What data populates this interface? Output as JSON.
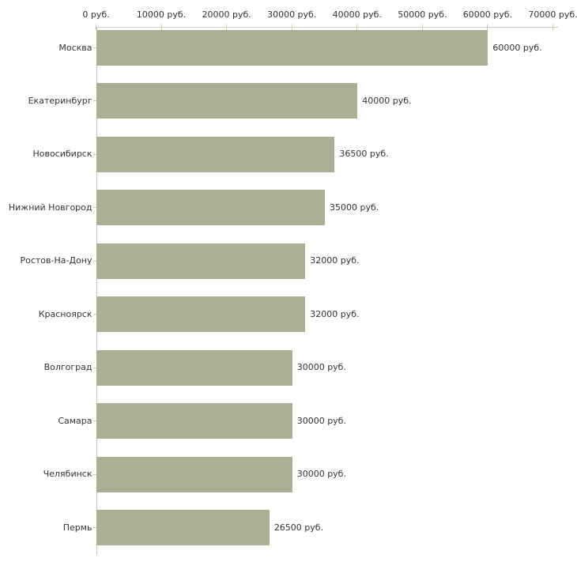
{
  "chart_data": {
    "type": "bar",
    "orientation": "horizontal",
    "title": "",
    "xlabel": "",
    "ylabel": "",
    "categories": [
      "Москва",
      "Екатеринбург",
      "Новосибирск",
      "Нижний Новгород",
      "Ростов-На-Дону",
      "Красноярск",
      "Волгоград",
      "Самара",
      "Челябинск",
      "Пермь"
    ],
    "values": [
      60000,
      40000,
      36500,
      35000,
      32000,
      32000,
      30000,
      30000,
      30000,
      26500
    ],
    "value_labels": [
      "60000 руб.",
      "40000 руб.",
      "36500 руб.",
      "35000 руб.",
      "32000 руб.",
      "32000 руб.",
      "30000 руб.",
      "30000 руб.",
      "30000 руб.",
      "26500 руб."
    ],
    "x_ticks": [
      0,
      10000,
      20000,
      30000,
      40000,
      50000,
      60000,
      70000
    ],
    "x_tick_labels": [
      "0 руб.",
      "10000 руб.",
      "20000 руб.",
      "30000 руб.",
      "40000 руб.",
      "50000 руб.",
      "60000 руб.",
      "70000 руб."
    ],
    "xlim": [
      0,
      70000
    ],
    "grid": false,
    "legend": false,
    "axis_position": "top",
    "colors": {
      "bar_fill": "#aab094",
      "axis_line": "#cccccc",
      "tick_mark": "#c9cd9f",
      "text": "#333333",
      "background": "#ffffff"
    }
  }
}
